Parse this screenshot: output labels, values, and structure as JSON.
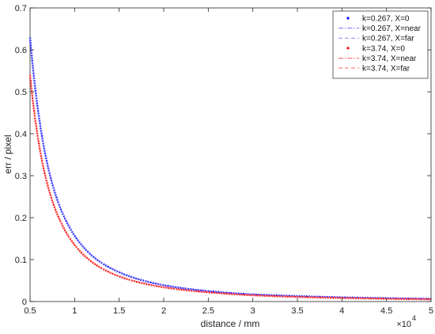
{
  "chart_data": {
    "type": "line",
    "xlabel": "distance / mm",
    "ylabel": "err / pixel",
    "x_exponent_label": "×10",
    "x_exponent_power": "4",
    "xlim": [
      0.5,
      5
    ],
    "ylim": [
      0,
      0.7
    ],
    "x_scale_factor": 10000,
    "grid": false,
    "legend_position": "top-right",
    "x_ticks": [
      0.5,
      1,
      1.5,
      2,
      2.5,
      3,
      3.5,
      4,
      4.5,
      5
    ],
    "x_tick_labels": [
      "0.5",
      "1",
      "1.5",
      "2",
      "2.5",
      "3",
      "3.5",
      "4",
      "4.5",
      "5"
    ],
    "y_ticks": [
      0,
      0.1,
      0.2,
      0.3,
      0.4,
      0.5,
      0.6,
      0.7
    ],
    "y_tick_labels": [
      "0",
      "0.1",
      "0.2",
      "0.3",
      "0.4",
      "0.5",
      "0.6",
      "0.7"
    ],
    "x": [
      0.5,
      0.6,
      0.7,
      0.8,
      1.0,
      1.25,
      1.5,
      2.0,
      2.5,
      3.0,
      3.5,
      4.0,
      4.5,
      5.0
    ],
    "series": [
      {
        "name": "k=0.267, X=0",
        "color": "#0000ff",
        "style": "dot",
        "values": [
          0.63,
          0.44,
          0.322,
          0.246,
          0.157,
          0.1,
          0.07,
          0.039,
          0.025,
          0.017,
          0.013,
          0.01,
          0.008,
          0.0065
        ]
      },
      {
        "name": "k=0.267, X=near",
        "color": "#6666ff",
        "style": "dashdot",
        "values": [
          0.63,
          0.44,
          0.322,
          0.246,
          0.157,
          0.1,
          0.07,
          0.039,
          0.025,
          0.017,
          0.013,
          0.01,
          0.008,
          0.0065
        ]
      },
      {
        "name": "k=0.267, X=far",
        "color": "#7777ff",
        "style": "dash",
        "values": [
          0.632,
          0.442,
          0.324,
          0.248,
          0.158,
          0.101,
          0.071,
          0.04,
          0.026,
          0.018,
          0.013,
          0.01,
          0.008,
          0.0066
        ]
      },
      {
        "name": "k=3.74, X=0",
        "color": "#ff0000",
        "style": "dot",
        "values": [
          0.54,
          0.375,
          0.275,
          0.211,
          0.135,
          0.086,
          0.06,
          0.034,
          0.022,
          0.015,
          0.011,
          0.0085,
          0.0067,
          0.0054
        ]
      },
      {
        "name": "k=3.74, X=near",
        "color": "#ff4444",
        "style": "dashdot",
        "values": [
          0.54,
          0.375,
          0.275,
          0.211,
          0.135,
          0.086,
          0.06,
          0.034,
          0.022,
          0.015,
          0.011,
          0.0085,
          0.0067,
          0.0054
        ]
      },
      {
        "name": "k=3.74, X=far",
        "color": "#ff6666",
        "style": "dash",
        "values": [
          0.541,
          0.376,
          0.276,
          0.212,
          0.136,
          0.087,
          0.06,
          0.034,
          0.022,
          0.015,
          0.011,
          0.0085,
          0.0067,
          0.0054
        ]
      }
    ]
  }
}
